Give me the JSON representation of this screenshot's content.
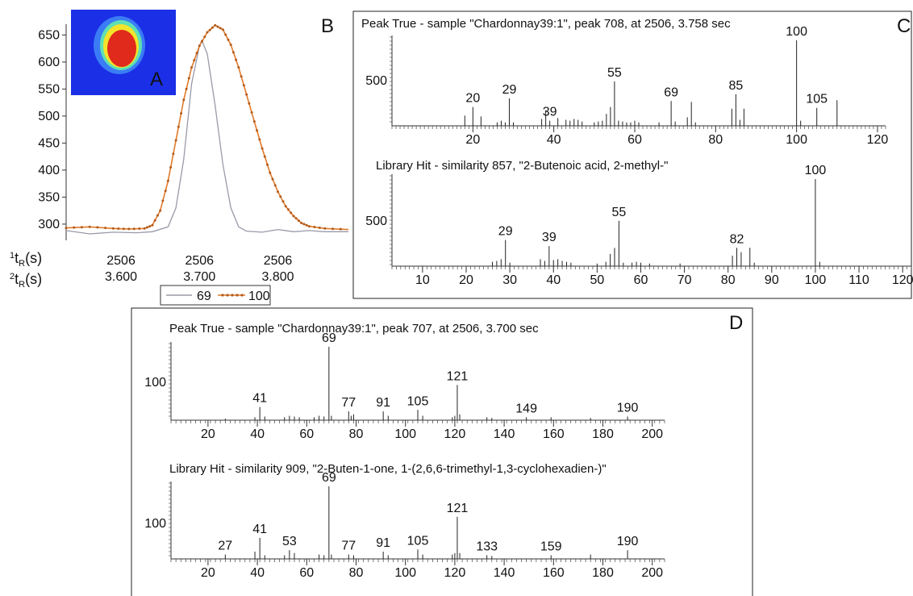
{
  "chart_data": [
    {
      "id": "A",
      "type": "line",
      "panel_letter": "A",
      "x_axis_1_label": "t",
      "x_axis_1_sup": "1",
      "x_axis_1_sub": "R",
      "x_axis_1_unit": "(s)",
      "x_axis_2_label": "t",
      "x_axis_2_sup": "2",
      "x_axis_2_sub": "R",
      "x_axis_2_unit": "(s)",
      "x_ticks_first_dim": [
        "2506",
        "2506",
        "2506"
      ],
      "x_ticks_second_dim": [
        "3.600",
        "3.700",
        "3.800"
      ],
      "x_tick_values": [
        3.6,
        3.7,
        3.8
      ],
      "xlim": [
        3.53,
        3.89
      ],
      "ylim": [
        270,
        670
      ],
      "y_ticks": [
        300,
        350,
        400,
        450,
        500,
        550,
        600,
        650
      ],
      "inset": "heatmap of peak (red centre, yellow/green ring, blue background)",
      "series": [
        {
          "name": "69",
          "color": "#9a9aaa",
          "marker": "none",
          "x": [
            3.53,
            3.56,
            3.59,
            3.62,
            3.64,
            3.66,
            3.67,
            3.68,
            3.69,
            3.7,
            3.703,
            3.71,
            3.72,
            3.73,
            3.74,
            3.75,
            3.76,
            3.78,
            3.8,
            3.82,
            3.84,
            3.86,
            3.89
          ],
          "y": [
            288,
            282,
            285,
            284,
            286,
            295,
            330,
            420,
            560,
            630,
            640,
            615,
            520,
            410,
            330,
            295,
            287,
            285,
            290,
            286,
            288,
            286,
            286
          ]
        },
        {
          "name": "100",
          "color": "#e07a2a",
          "marker": "dot",
          "x": [
            3.53,
            3.56,
            3.59,
            3.61,
            3.63,
            3.64,
            3.65,
            3.66,
            3.67,
            3.68,
            3.69,
            3.7,
            3.71,
            3.72,
            3.73,
            3.74,
            3.75,
            3.76,
            3.77,
            3.78,
            3.79,
            3.8,
            3.81,
            3.82,
            3.83,
            3.84,
            3.86,
            3.89
          ],
          "y": [
            293,
            295,
            292,
            291,
            292,
            298,
            325,
            380,
            455,
            530,
            590,
            630,
            655,
            668,
            660,
            632,
            590,
            540,
            490,
            440,
            395,
            360,
            333,
            315,
            302,
            296,
            292,
            290
          ]
        }
      ]
    },
    {
      "id": "B_top",
      "type": "bar",
      "panel_letter": "B",
      "title": "Peak True - sample \"Chardonnay39:1\", peak 708, at 2506, 3.758 sec",
      "xlim": [
        0,
        122
      ],
      "x_ticks": [
        20,
        40,
        60,
        80,
        100,
        120
      ],
      "y_tick": 500,
      "peaks": [
        [
          18,
          120
        ],
        [
          20,
          220
        ],
        [
          22,
          110
        ],
        [
          26,
          40
        ],
        [
          27,
          60
        ],
        [
          28,
          40
        ],
        [
          29,
          320
        ],
        [
          30,
          40
        ],
        [
          37,
          80
        ],
        [
          38,
          180
        ],
        [
          39,
          60
        ],
        [
          41,
          90
        ],
        [
          43,
          70
        ],
        [
          44,
          60
        ],
        [
          45,
          80
        ],
        [
          46,
          70
        ],
        [
          47,
          50
        ],
        [
          50,
          40
        ],
        [
          51,
          50
        ],
        [
          52,
          60
        ],
        [
          53,
          140
        ],
        [
          54,
          220
        ],
        [
          55,
          520
        ],
        [
          56,
          60
        ],
        [
          57,
          50
        ],
        [
          58,
          40
        ],
        [
          59,
          40
        ],
        [
          60,
          60
        ],
        [
          61,
          40
        ],
        [
          66,
          40
        ],
        [
          69,
          290
        ],
        [
          70,
          50
        ],
        [
          73,
          100
        ],
        [
          74,
          280
        ],
        [
          75,
          40
        ],
        [
          84,
          200
        ],
        [
          85,
          370
        ],
        [
          86,
          70
        ],
        [
          87,
          200
        ],
        [
          100,
          1000
        ],
        [
          101,
          60
        ],
        [
          105,
          210
        ],
        [
          110,
          300
        ]
      ],
      "labels": [
        [
          20,
          "20"
        ],
        [
          29,
          "29"
        ],
        [
          39,
          "39"
        ],
        [
          55,
          "55"
        ],
        [
          69,
          "69"
        ],
        [
          85,
          "85"
        ],
        [
          100,
          "100"
        ],
        [
          105,
          "105"
        ]
      ]
    },
    {
      "id": "B_bottom",
      "type": "bar",
      "panel_letter": "C",
      "title": "Library Hit - similarity 857, \"2-Butenoic acid, 2-methyl-\"",
      "xlim": [
        3,
        122
      ],
      "x_ticks": [
        10,
        20,
        30,
        40,
        50,
        60,
        70,
        80,
        90,
        100,
        110,
        120
      ],
      "y_tick": 500,
      "peaks": [
        [
          26,
          50
        ],
        [
          27,
          60
        ],
        [
          28,
          80
        ],
        [
          29,
          300
        ],
        [
          30,
          40
        ],
        [
          37,
          80
        ],
        [
          38,
          60
        ],
        [
          39,
          230
        ],
        [
          40,
          70
        ],
        [
          41,
          80
        ],
        [
          42,
          60
        ],
        [
          43,
          50
        ],
        [
          44,
          40
        ],
        [
          50,
          30
        ],
        [
          52,
          50
        ],
        [
          53,
          140
        ],
        [
          54,
          210
        ],
        [
          55,
          520
        ],
        [
          56,
          40
        ],
        [
          58,
          40
        ],
        [
          59,
          50
        ],
        [
          60,
          40
        ],
        [
          62,
          30
        ],
        [
          69,
          30
        ],
        [
          81,
          120
        ],
        [
          82,
          210
        ],
        [
          83,
          160
        ],
        [
          85,
          210
        ],
        [
          86,
          40
        ],
        [
          100,
          1000
        ],
        [
          101,
          50
        ]
      ],
      "labels": [
        [
          29,
          "29"
        ],
        [
          39,
          "39"
        ],
        [
          55,
          "55"
        ],
        [
          82,
          "82"
        ],
        [
          100,
          "100"
        ]
      ]
    },
    {
      "id": "D_top",
      "type": "bar",
      "panel_letter": "D",
      "title": "Peak True - sample \"Chardonnay39:1\", peak 707, at 2506, 3.700 sec",
      "xlim": [
        5,
        205
      ],
      "x_ticks": [
        20,
        40,
        60,
        80,
        100,
        120,
        140,
        160,
        180,
        200
      ],
      "y_tick": 100,
      "peaks": [
        [
          27,
          20
        ],
        [
          39,
          40
        ],
        [
          41,
          180
        ],
        [
          43,
          50
        ],
        [
          51,
          40
        ],
        [
          53,
          60
        ],
        [
          55,
          50
        ],
        [
          57,
          40
        ],
        [
          63,
          40
        ],
        [
          65,
          60
        ],
        [
          67,
          50
        ],
        [
          69,
          1000
        ],
        [
          70,
          60
        ],
        [
          77,
          120
        ],
        [
          78,
          60
        ],
        [
          79,
          80
        ],
        [
          91,
          120
        ],
        [
          93,
          60
        ],
        [
          105,
          140
        ],
        [
          107,
          60
        ],
        [
          119,
          40
        ],
        [
          120,
          60
        ],
        [
          121,
          480
        ],
        [
          122,
          80
        ],
        [
          133,
          40
        ],
        [
          135,
          30
        ],
        [
          149,
          40
        ],
        [
          159,
          40
        ],
        [
          175,
          30
        ],
        [
          190,
          50
        ]
      ],
      "labels": [
        [
          41,
          "41"
        ],
        [
          69,
          "69"
        ],
        [
          77,
          "77"
        ],
        [
          91,
          "91"
        ],
        [
          105,
          "105"
        ],
        [
          121,
          "121"
        ],
        [
          149,
          "149"
        ],
        [
          190,
          "190"
        ]
      ]
    },
    {
      "id": "D_bottom",
      "type": "bar",
      "title": "Library Hit - similarity 909, \"2-Buten-1-one, 1-(2,6,6-trimethyl-1,3-cyclohexadien-)\"",
      "xlim": [
        5,
        205
      ],
      "x_ticks": [
        20,
        40,
        60,
        80,
        100,
        120,
        140,
        160,
        180,
        200
      ],
      "y_tick": 100,
      "peaks": [
        [
          27,
          60
        ],
        [
          39,
          100
        ],
        [
          41,
          290
        ],
        [
          43,
          50
        ],
        [
          51,
          50
        ],
        [
          53,
          120
        ],
        [
          55,
          80
        ],
        [
          65,
          60
        ],
        [
          67,
          50
        ],
        [
          69,
          1000
        ],
        [
          70,
          60
        ],
        [
          77,
          60
        ],
        [
          79,
          50
        ],
        [
          91,
          100
        ],
        [
          93,
          50
        ],
        [
          105,
          130
        ],
        [
          107,
          60
        ],
        [
          119,
          60
        ],
        [
          120,
          80
        ],
        [
          121,
          580
        ],
        [
          122,
          80
        ],
        [
          133,
          50
        ],
        [
          135,
          40
        ],
        [
          159,
          50
        ],
        [
          175,
          60
        ],
        [
          190,
          120
        ]
      ],
      "labels": [
        [
          27,
          "27"
        ],
        [
          41,
          "41"
        ],
        [
          53,
          "53"
        ],
        [
          69,
          "69"
        ],
        [
          77,
          "77"
        ],
        [
          91,
          "91"
        ],
        [
          105,
          "105"
        ],
        [
          121,
          "121"
        ],
        [
          133,
          "133"
        ],
        [
          159,
          "159"
        ],
        [
          190,
          "190"
        ]
      ]
    }
  ]
}
